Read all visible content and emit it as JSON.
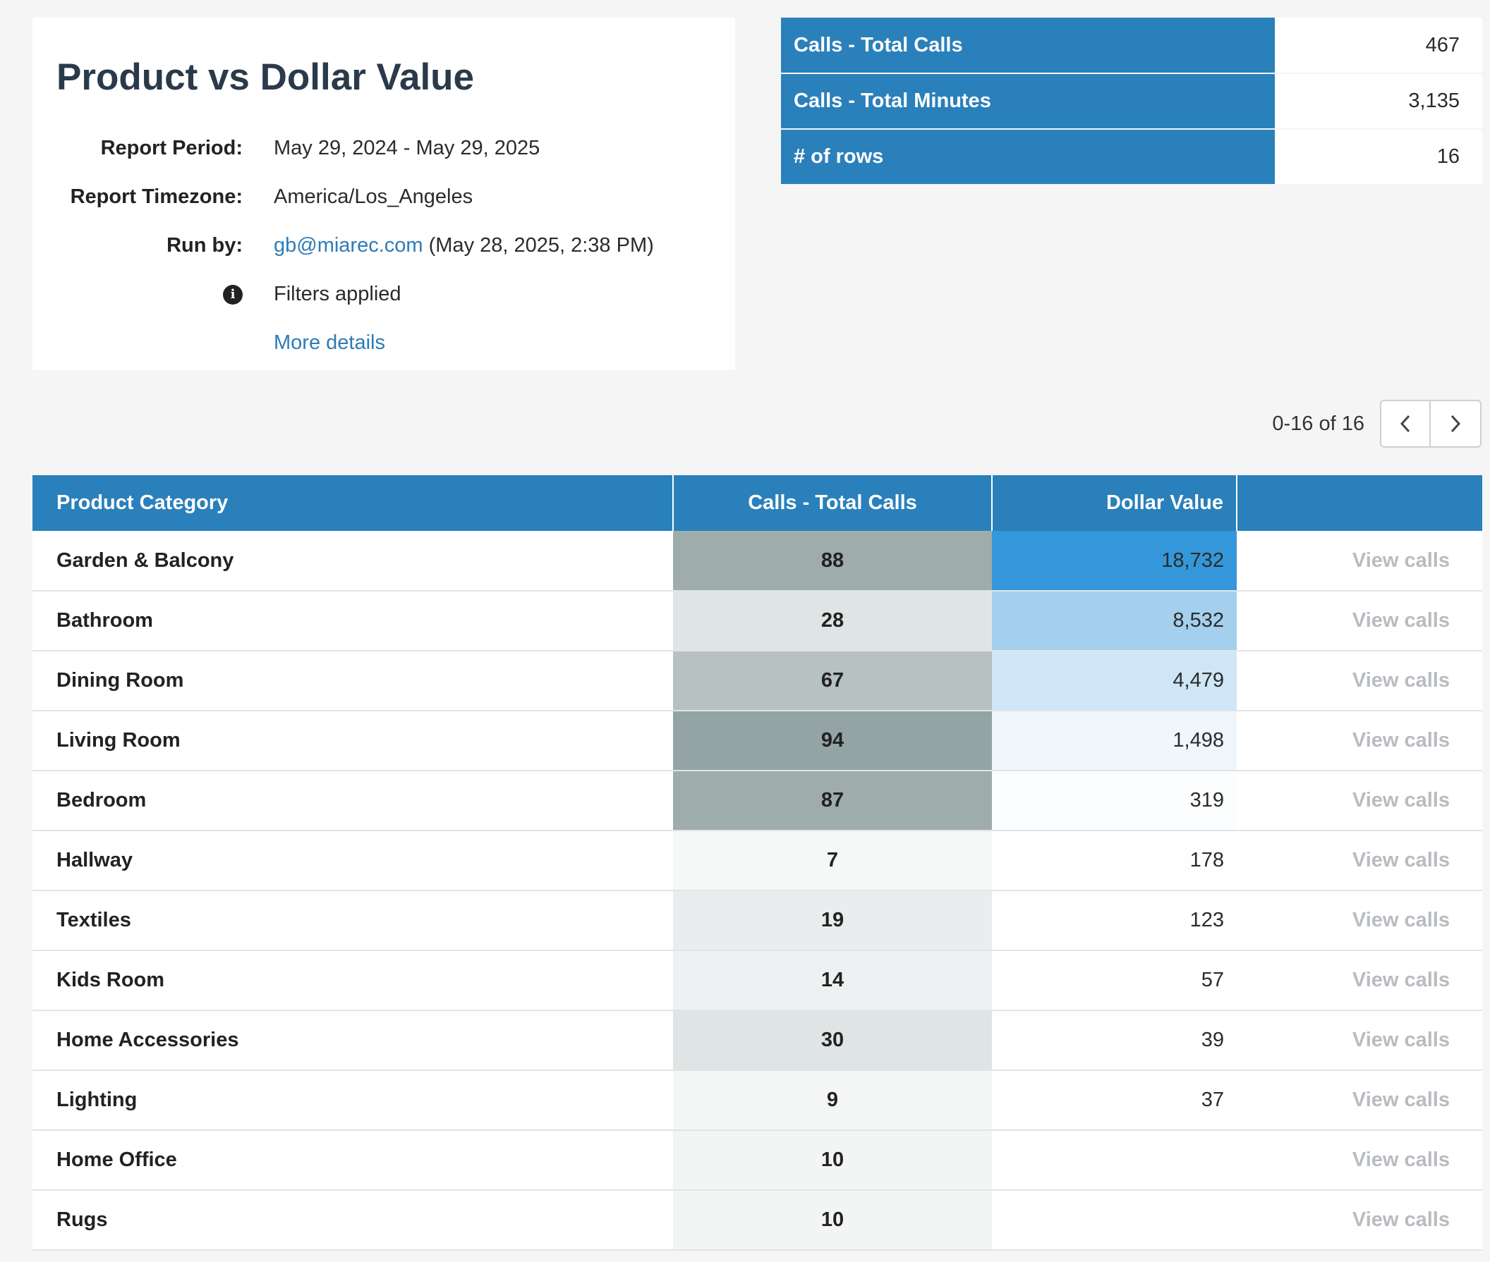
{
  "report": {
    "title": "Product vs Dollar Value",
    "period_label": "Report Period:",
    "period_value": "May 29, 2024 - May 29, 2025",
    "timezone_label": "Report Timezone:",
    "timezone_value": "America/Los_Angeles",
    "runby_label": "Run by:",
    "runby_email": "gb@miarec.com",
    "runby_time": " (May 28, 2025, 2:38 PM)",
    "filters_text": "Filters applied",
    "more_details": "More details"
  },
  "summary": [
    {
      "label": "Calls - Total Calls",
      "value": "467"
    },
    {
      "label": "Calls - Total Minutes",
      "value": "3,135"
    },
    {
      "label": "# of rows",
      "value": "16"
    }
  ],
  "pager": {
    "range_text": "0-16 of 16"
  },
  "table": {
    "headers": {
      "category": "Product Category",
      "calls": "Calls - Total Calls",
      "dollar": "Dollar Value",
      "action": ""
    },
    "view_label": "View calls",
    "rows": [
      {
        "category": "Garden & Balcony",
        "calls": "88",
        "dollar": "18,732",
        "calls_bg": "#9eacab",
        "dollar_bg": "#3497d9"
      },
      {
        "category": "Bathroom",
        "calls": "28",
        "dollar": "8,532",
        "calls_bg": "#dfe4e4",
        "dollar_bg": "#a4d0ee"
      },
      {
        "category": "Dining Room",
        "calls": "67",
        "dollar": "4,479",
        "calls_bg": "#b6c1c1",
        "dollar_bg": "#cfe6f6"
      },
      {
        "category": "Living Room",
        "calls": "94",
        "dollar": "1,498",
        "calls_bg": "#94a3a3",
        "dollar_bg": "#eff6fc"
      },
      {
        "category": "Bedroom",
        "calls": "87",
        "dollar": "319",
        "calls_bg": "#9eacab",
        "dollar_bg": "#fcfdfe"
      },
      {
        "category": "Hallway",
        "calls": "7",
        "dollar": "178",
        "calls_bg": "#f6f7f7",
        "dollar_bg": "#fefefe"
      },
      {
        "category": "Textiles",
        "calls": "19",
        "dollar": "123",
        "calls_bg": "#eaeded",
        "dollar_bg": "#ffffff"
      },
      {
        "category": "Kids Room",
        "calls": "14",
        "dollar": "57",
        "calls_bg": "#eef1f1",
        "dollar_bg": "#ffffff"
      },
      {
        "category": "Home Accessories",
        "calls": "30",
        "dollar": "39",
        "calls_bg": "#dfe4e4",
        "dollar_bg": "#ffffff"
      },
      {
        "category": "Lighting",
        "calls": "9",
        "dollar": "37",
        "calls_bg": "#f4f5f5",
        "dollar_bg": "#ffffff"
      },
      {
        "category": "Home Office",
        "calls": "10",
        "dollar": "",
        "calls_bg": "#f3f5f5",
        "dollar_bg": "#ffffff"
      },
      {
        "category": "Rugs",
        "calls": "10",
        "dollar": "",
        "calls_bg": "#f3f5f5",
        "dollar_bg": "#ffffff"
      }
    ]
  },
  "colors": {
    "header_blue": "#2a80ba",
    "link_blue": "#2c7bb6"
  }
}
